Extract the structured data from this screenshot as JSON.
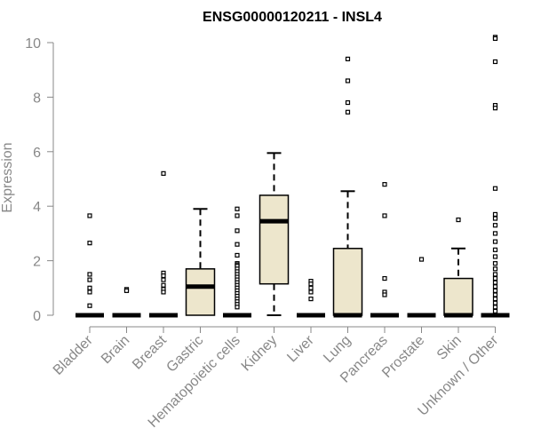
{
  "chart_data": {
    "type": "box",
    "title": "ENSG00000120211 - INSL4",
    "xlabel": "",
    "ylabel": "Expression",
    "ylim": [
      0,
      10.2
    ],
    "yticks": [
      0,
      2,
      4,
      6,
      8,
      10
    ],
    "grid": false,
    "colors": {
      "box_fill": "#ede6cc",
      "stroke": "#000000",
      "axis": "#888888"
    },
    "categories": [
      "Bladder",
      "Brain",
      "Breast",
      "Gastric",
      "Hematopoietic cells",
      "Kidney",
      "Liver",
      "Lung",
      "Pancreas",
      "Prostate",
      "Skin",
      "Unknown / Other"
    ],
    "boxes": [
      {
        "category": "Bladder",
        "min": 0,
        "q1": 0,
        "median": 0,
        "q3": 0,
        "max": 0,
        "outliers": [
          3.65,
          2.65,
          1.5,
          1.3,
          1.0,
          0.85,
          0.35
        ]
      },
      {
        "category": "Brain",
        "min": 0,
        "q1": 0,
        "median": 0,
        "q3": 0,
        "max": 0,
        "outliers": [
          0.95,
          0.9
        ]
      },
      {
        "category": "Breast",
        "min": 0,
        "q1": 0,
        "median": 0,
        "q3": 0,
        "max": 0,
        "outliers": [
          5.2,
          1.55,
          1.45,
          1.3,
          1.1,
          0.95,
          0.85
        ]
      },
      {
        "category": "Gastric",
        "min": 0,
        "q1": 0,
        "median": 1.05,
        "q3": 1.7,
        "max": 3.9,
        "outliers": []
      },
      {
        "category": "Hematopoietic cells",
        "min": 0,
        "q1": 0,
        "median": 0,
        "q3": 0,
        "max": 0,
        "outliers": [
          3.9,
          3.65,
          3.1,
          2.6,
          2.2,
          1.9,
          1.85,
          1.8,
          1.7,
          1.6,
          1.5,
          1.4,
          1.3,
          1.2,
          1.1,
          1.0,
          0.9,
          0.8,
          0.7,
          0.6,
          0.5,
          0.4,
          0.3
        ]
      },
      {
        "category": "Kidney",
        "min": 0,
        "q1": 1.15,
        "median": 3.45,
        "q3": 4.4,
        "max": 5.95,
        "outliers": []
      },
      {
        "category": "Liver",
        "min": 0,
        "q1": 0,
        "median": 0,
        "q3": 0,
        "max": 0,
        "outliers": [
          1.25,
          1.15,
          1.0,
          0.85,
          0.6
        ]
      },
      {
        "category": "Lung",
        "min": 0,
        "q1": 0,
        "median": 0,
        "q3": 2.45,
        "max": 4.55,
        "outliers": [
          9.4,
          8.6,
          7.8,
          7.45
        ]
      },
      {
        "category": "Pancreas",
        "min": 0,
        "q1": 0,
        "median": 0,
        "q3": 0,
        "max": 0,
        "outliers": [
          4.8,
          3.65,
          1.35,
          0.85,
          0.75
        ]
      },
      {
        "category": "Prostate",
        "min": 0,
        "q1": 0,
        "median": 0,
        "q3": 0,
        "max": 0,
        "outliers": [
          2.05
        ]
      },
      {
        "category": "Skin",
        "min": 0,
        "q1": 0,
        "median": 0,
        "q3": 1.35,
        "max": 2.45,
        "outliers": [
          3.5
        ]
      },
      {
        "category": "Unknown / Other",
        "min": 0,
        "q1": 0,
        "median": 0,
        "q3": 0,
        "max": 0,
        "outliers": [
          10.2,
          10.15,
          9.3,
          7.7,
          7.6,
          4.65,
          3.7,
          3.55,
          3.3,
          3.0,
          2.7,
          2.4,
          2.15,
          1.9,
          1.7,
          1.5,
          1.35,
          1.2,
          1.05,
          0.9,
          0.75,
          0.6,
          0.45,
          0.3,
          0.15
        ]
      }
    ]
  }
}
